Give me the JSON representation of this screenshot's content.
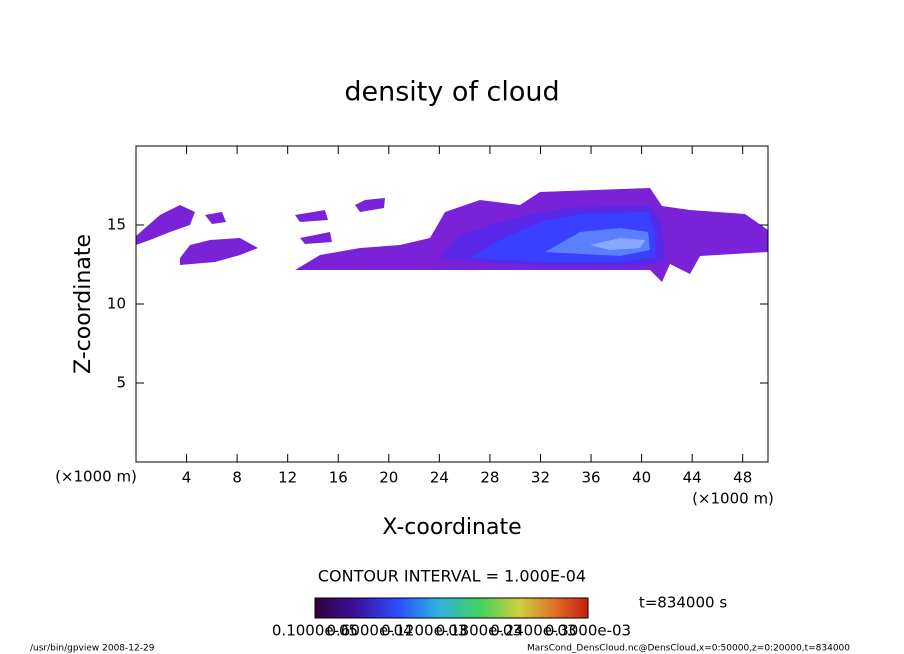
{
  "chart_data": {
    "type": "contour",
    "title": "density of cloud",
    "xlabel": "X-coordinate",
    "ylabel": "Z-coordinate",
    "x_unit_left": "(×1000 m)",
    "x_unit_right": "(×1000 m)",
    "xlim": [
      0,
      50
    ],
    "xticks": [
      4,
      8,
      12,
      16,
      20,
      24,
      28,
      32,
      36,
      40,
      44,
      48
    ],
    "ylim": [
      0,
      20
    ],
    "yticks": [
      5,
      10,
      15
    ],
    "contour_interval": "CONTOUR INTERVAL = 1.000E-04",
    "time": "t=834000 s",
    "colorbar_labels": [
      "0.1000e-05",
      "0.6000e-04",
      "0.1200e-03",
      "0.1800e-03",
      "0.2400e-03",
      "0.3000e-03"
    ],
    "footer_left": "/usr/bin/gpview   2008-12-29",
    "footer_right": "MarsCond_DensCloud.nc@DensCloud,x=0:50000,z=0:20000,t=834000"
  }
}
